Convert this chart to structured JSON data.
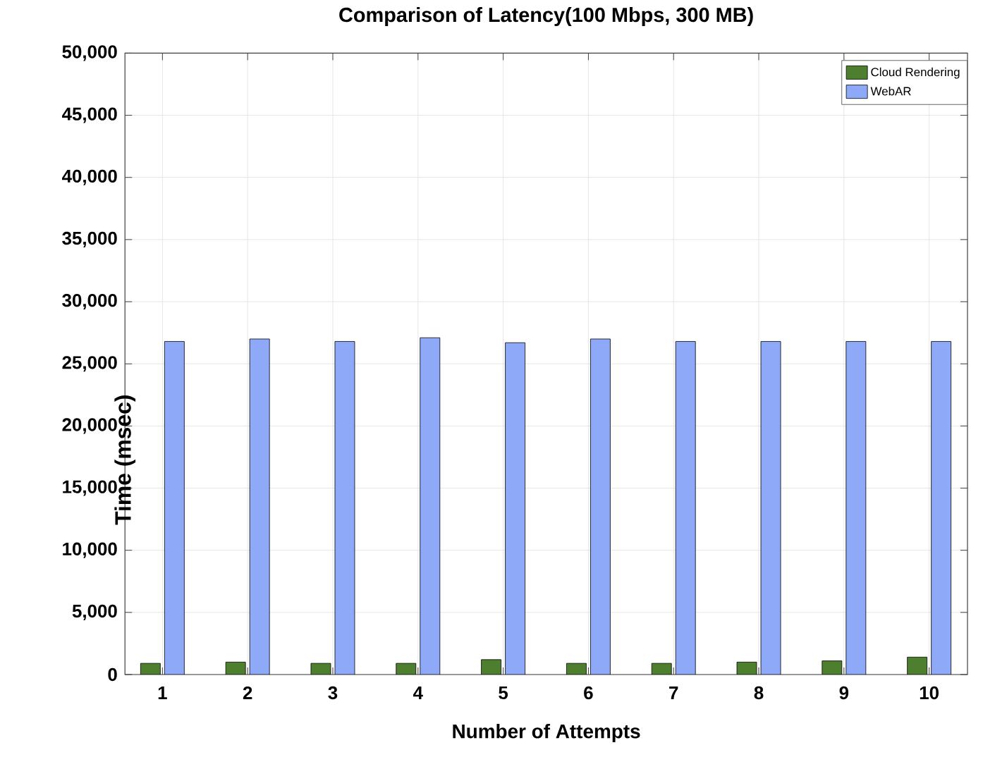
{
  "chart_data": {
    "type": "bar",
    "title": "Comparison of Latency(100 Mbps, 300 MB)",
    "xlabel": "Number of Attempts",
    "ylabel": "Time (msec)",
    "categories": [
      "1",
      "2",
      "3",
      "4",
      "5",
      "6",
      "7",
      "8",
      "9",
      "10"
    ],
    "series": [
      {
        "name": "Cloud Rendering",
        "color": "#4e7f2e",
        "values": [
          900,
          1000,
          900,
          900,
          1200,
          900,
          900,
          1000,
          1100,
          1400
        ]
      },
      {
        "name": "WebAR",
        "color": "#8ea9f7",
        "values": [
          26800,
          27000,
          26800,
          27100,
          26700,
          27000,
          26800,
          26800,
          26800,
          26800
        ]
      }
    ],
    "ylim": [
      0,
      50000
    ],
    "yticks": [
      0,
      {
        "value": 5000,
        "label": "5,000"
      },
      {
        "value": 10000,
        "label": "10,000"
      },
      {
        "value": 15000,
        "label": "15,000"
      },
      {
        "value": 20000,
        "label": "20,000"
      },
      {
        "value": 25000,
        "label": "25,000"
      },
      {
        "value": 30000,
        "label": "30,000"
      },
      {
        "value": 35000,
        "label": "35,000"
      },
      {
        "value": 40000,
        "label": "40,000"
      },
      {
        "value": 45000,
        "label": "45,000"
      },
      {
        "value": 50000,
        "label": "50,000"
      }
    ],
    "grid": true,
    "legend": "top right"
  }
}
